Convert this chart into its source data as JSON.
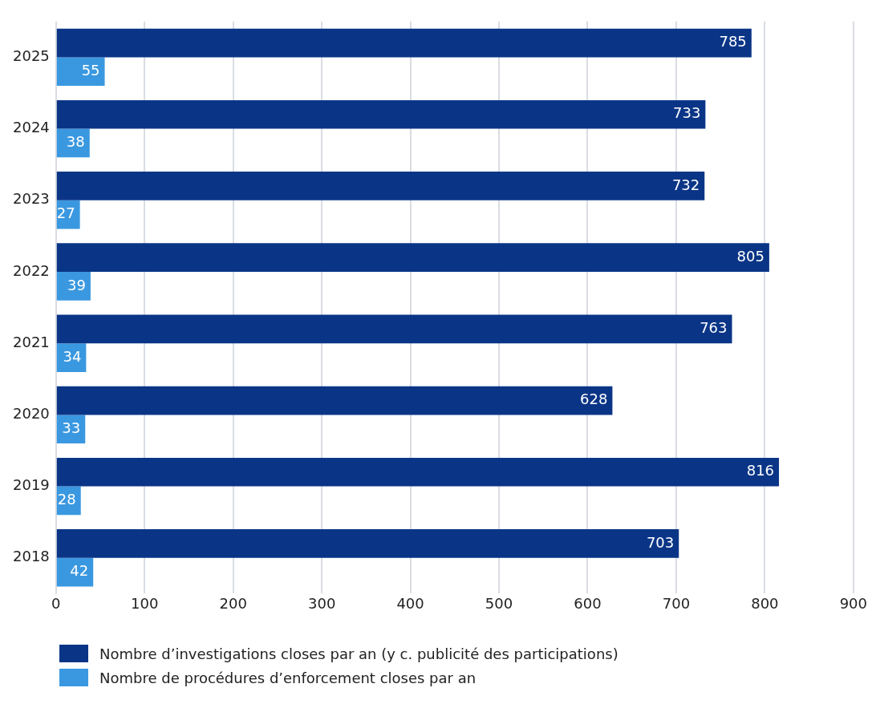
{
  "chart_data": {
    "type": "bar",
    "orientation": "horizontal",
    "categories": [
      "2025",
      "2024",
      "2023",
      "2022",
      "2021",
      "2020",
      "2019",
      "2018"
    ],
    "series": [
      {
        "name": "Nombre d’investigations closes par an (y c. publicité des participations)",
        "color": "#0a3587",
        "values": [
          785,
          733,
          732,
          805,
          763,
          628,
          816,
          703
        ]
      },
      {
        "name": "Nombre de procédures d’enforcement closes par an",
        "color": "#3a98e0",
        "values": [
          55,
          38,
          27,
          39,
          34,
          33,
          28,
          42
        ]
      }
    ],
    "xlim": [
      0,
      900
    ],
    "xticks": [
      0,
      100,
      200,
      300,
      400,
      500,
      600,
      700,
      800,
      900
    ],
    "grid": "x",
    "legend": "bottom",
    "data_labels": true
  }
}
